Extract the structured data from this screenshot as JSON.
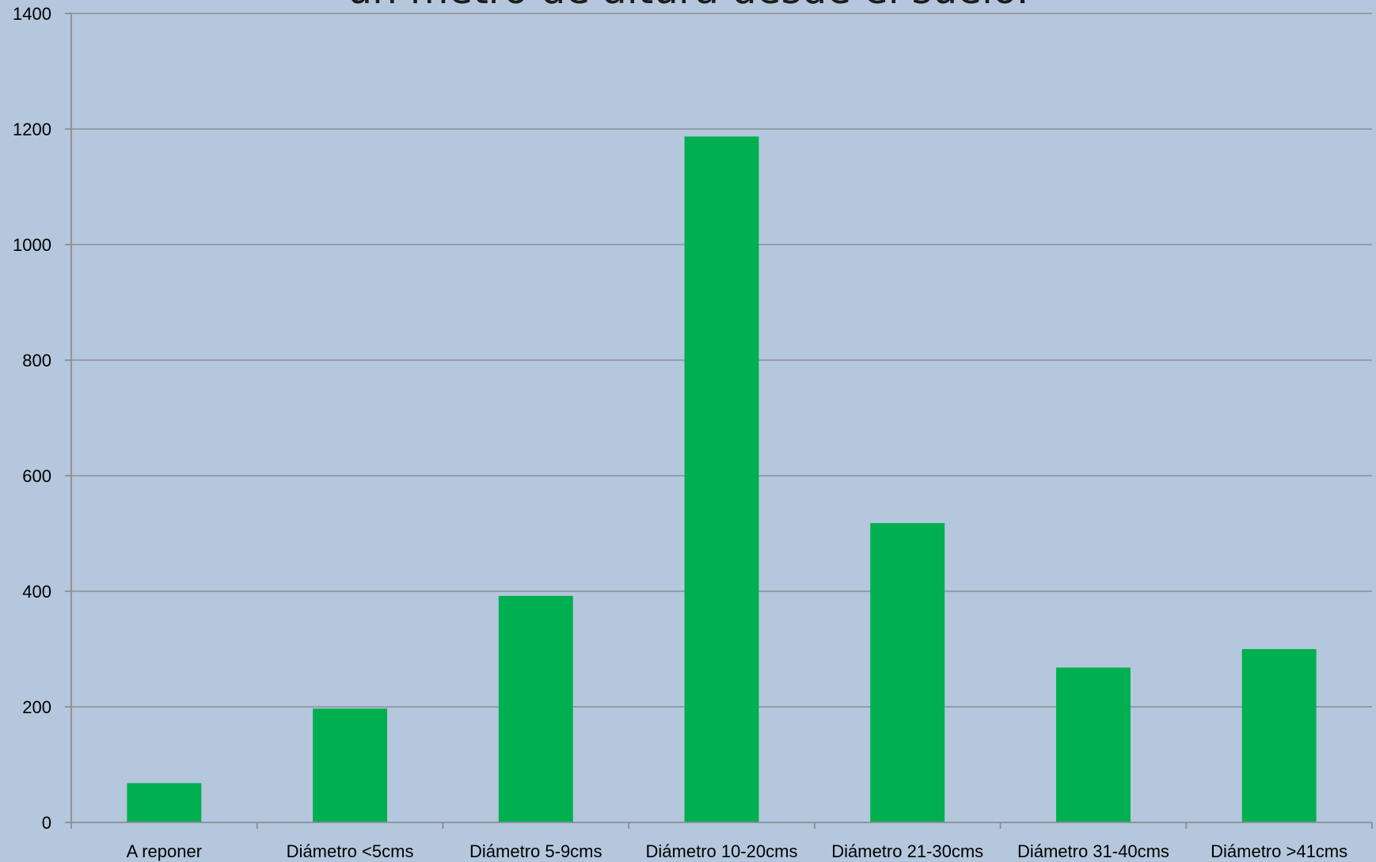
{
  "chart_data": {
    "type": "bar",
    "title": "un metro de altura desde el suelo.",
    "xlabel": "",
    "ylabel": "",
    "ylim": [
      0,
      1400
    ],
    "yticks": [
      0,
      200,
      400,
      600,
      800,
      1000,
      1200,
      1400
    ],
    "grid": true,
    "legend": "none",
    "categories": [
      "A reponer",
      "Diámetro <5cms",
      "Diámetro 5-9cms",
      "Diámetro 10-20cms",
      "Diámetro 21-30cms",
      "Diámetro 31-40cms",
      "Diámetro >41cms"
    ],
    "values": [
      68,
      197,
      392,
      1187,
      518,
      268,
      300
    ],
    "bar_color": "#00af4f",
    "background_color": "#b4c7dc"
  }
}
